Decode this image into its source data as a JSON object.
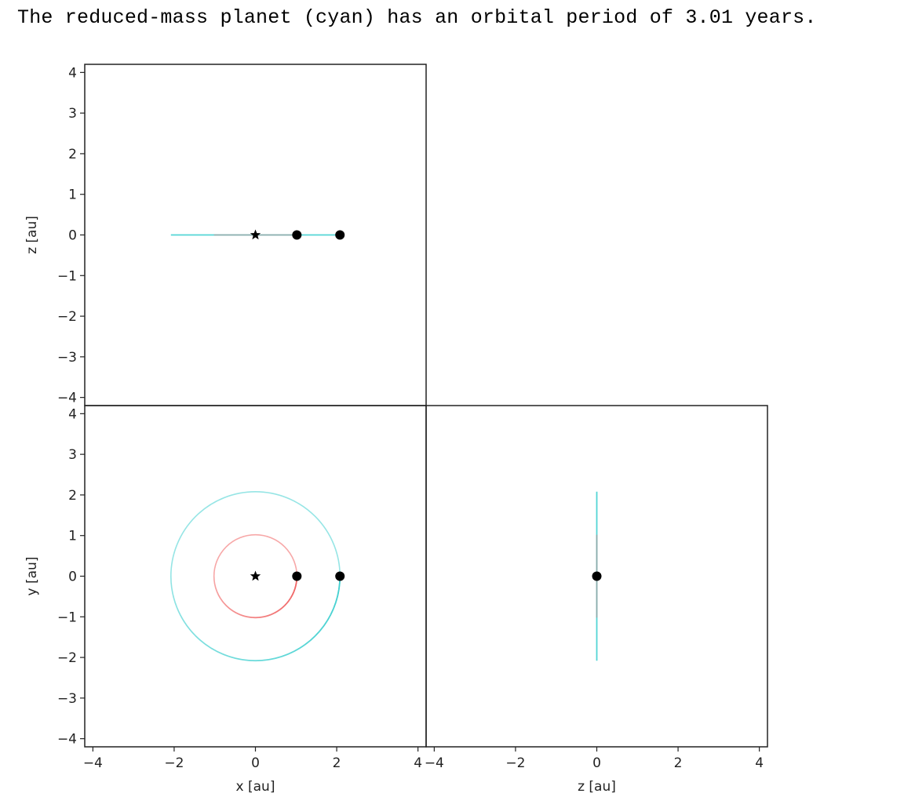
{
  "headline": "The reduced-mass planet (cyan) has an orbital period of 3.01 years.",
  "colors": {
    "reduced_mass_orbit": "#40d0d0",
    "inner_orbit": "#f06060",
    "marker": "#000000",
    "frame": "#222222"
  },
  "chart_data": [
    {
      "type": "line",
      "panel": "top-left",
      "title": "",
      "xlabel": "",
      "ylabel": "z [au]",
      "xlim": [
        -4.2,
        4.2
      ],
      "ylim": [
        -4.2,
        4.2
      ],
      "yticks": [
        4,
        3,
        2,
        1,
        0,
        -1,
        -2,
        -3,
        -4
      ],
      "ytick_labels": [
        "4",
        "3",
        "2",
        "1",
        "0",
        "−1",
        "−2",
        "−3",
        "−4"
      ],
      "series": [
        {
          "color": "cyan",
          "x": [
            -2.08,
            2.08
          ],
          "y": [
            0,
            0
          ]
        },
        {
          "color": "red",
          "x": [
            -1.02,
            1.02
          ],
          "y": [
            0,
            0
          ]
        }
      ],
      "markers": [
        {
          "symbol": "star",
          "x": 0,
          "y": 0
        },
        {
          "symbol": "circle",
          "x": 1.02,
          "y": 0
        },
        {
          "symbol": "circle",
          "x": 2.08,
          "y": 0
        }
      ]
    },
    {
      "type": "line",
      "panel": "bottom-left",
      "title": "",
      "xlabel": "x [au]",
      "ylabel": "y [au]",
      "xlim": [
        -4.2,
        4.2
      ],
      "ylim": [
        -4.2,
        4.2
      ],
      "xticks": [
        -4,
        -2,
        0,
        2,
        4
      ],
      "xtick_labels": [
        "−4",
        "−2",
        "0",
        "2",
        "4"
      ],
      "yticks": [
        4,
        3,
        2,
        1,
        0,
        -1,
        -2,
        -3,
        -4
      ],
      "ytick_labels": [
        "4",
        "3",
        "2",
        "1",
        "0",
        "−1",
        "−2",
        "−3",
        "−4"
      ],
      "series": [
        {
          "color": "cyan",
          "shape": "circle",
          "center": [
            0,
            0
          ],
          "radius": 2.08
        },
        {
          "color": "red",
          "shape": "circle",
          "center": [
            0,
            0
          ],
          "radius": 1.02
        }
      ],
      "markers": [
        {
          "symbol": "star",
          "x": 0,
          "y": 0
        },
        {
          "symbol": "circle",
          "x": 1.02,
          "y": 0
        },
        {
          "symbol": "circle",
          "x": 2.08,
          "y": 0
        }
      ]
    },
    {
      "type": "line",
      "panel": "bottom-right",
      "title": "",
      "xlabel": "z [au]",
      "ylabel": "",
      "xlim": [
        -4.2,
        4.2
      ],
      "ylim": [
        -4.2,
        4.2
      ],
      "xticks": [
        -4,
        -2,
        0,
        2,
        4
      ],
      "xtick_labels": [
        "−4",
        "−2",
        "0",
        "2",
        "4"
      ],
      "series": [
        {
          "color": "cyan",
          "x": [
            0,
            0
          ],
          "y": [
            -2.08,
            2.08
          ]
        },
        {
          "color": "red",
          "x": [
            0,
            0
          ],
          "y": [
            -1.02,
            1.02
          ]
        }
      ],
      "markers": [
        {
          "symbol": "circle",
          "x": 0,
          "y": 0
        }
      ]
    }
  ]
}
